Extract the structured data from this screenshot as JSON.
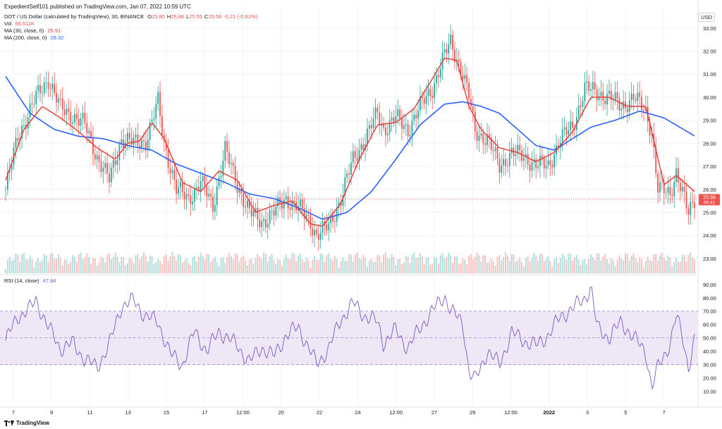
{
  "header": {
    "published": "ExpedientSelf101 published on TradingView.com, Jan 07, 2022 10:59 UTC"
  },
  "legend": {
    "symbol": "DOT / US Dollar (calculated by TradingView), 30, BINANCE",
    "ohlc": [
      {
        "k": "O",
        "v": "25.80"
      },
      {
        "k": "H",
        "v": "25.86"
      },
      {
        "k": "L",
        "v": "25.55"
      },
      {
        "k": "C",
        "v": "25.58"
      },
      {
        "k": "",
        "v": "-0.21 (-0.81%)"
      }
    ],
    "vol_label": "Vol",
    "vol_value": "66.511K",
    "ma30_label": "MA (30, close, 0)",
    "ma30_value": "25.91",
    "ma200_label": "MA (200, close, 0)",
    "ma200_value": "28.32",
    "rsi_label": "RSI (14, close)",
    "rsi_value": "47.84"
  },
  "currency_button": "USD",
  "price_badge": {
    "price": "25.58",
    "countdown": "00:41"
  },
  "footer_brand": "TradingView",
  "colors": {
    "up": "#26a69a",
    "down": "#ef5350",
    "ma30": "#e53935",
    "ma200": "#2962ff",
    "rsi": "#7e57c2",
    "band": "#ede7f6"
  },
  "chart_data": [
    {
      "type": "candlestick",
      "title": "DOT / US Dollar (calculated by TradingView), 30, BINANCE",
      "x_tick_labels": [
        "7",
        "9",
        "11",
        "13",
        "15",
        "17",
        "12:00",
        "20",
        "22",
        "24",
        "12:00",
        "27",
        "29",
        "12:00",
        "2022",
        "3",
        "5",
        "7"
      ],
      "y_tick_labels": [
        "23.00",
        "24.00",
        "25.00",
        "26.00",
        "27.00",
        "28.00",
        "29.00",
        "30.00",
        "31.00",
        "32.00",
        "33.00"
      ],
      "ylim": [
        22.6,
        33.3
      ],
      "last_close": 25.58,
      "price_path": [
        [
          0,
          26.0
        ],
        [
          2,
          28.3
        ],
        [
          5,
          30.0
        ],
        [
          7,
          30.8
        ],
        [
          9,
          29.5
        ],
        [
          11,
          29.2
        ],
        [
          13,
          28.8
        ],
        [
          15,
          27.4
        ],
        [
          17,
          26.4
        ],
        [
          19,
          28.2
        ],
        [
          21,
          28.0
        ],
        [
          23,
          28.1
        ],
        [
          24,
          28.9
        ],
        [
          25,
          29.8
        ],
        [
          26,
          28.0
        ],
        [
          28,
          26.0
        ],
        [
          30,
          25.6
        ],
        [
          32,
          26.3
        ],
        [
          34,
          25.3
        ],
        [
          36,
          27.7
        ],
        [
          38,
          26.2
        ],
        [
          40,
          25.0
        ],
        [
          42,
          24.6
        ],
        [
          44,
          25.0
        ],
        [
          46,
          25.6
        ],
        [
          48,
          25.2
        ],
        [
          50,
          24.6
        ],
        [
          51,
          24.0
        ],
        [
          53,
          24.4
        ],
        [
          55,
          25.6
        ],
        [
          57,
          27.3
        ],
        [
          59,
          28.2
        ],
        [
          61,
          29.3
        ],
        [
          62,
          28.6
        ],
        [
          64,
          29.1
        ],
        [
          66,
          28.6
        ],
        [
          68,
          29.6
        ],
        [
          70,
          30.4
        ],
        [
          72,
          31.8
        ],
        [
          73,
          32.4
        ],
        [
          75,
          31.0
        ],
        [
          76,
          30.0
        ],
        [
          77,
          28.5
        ],
        [
          79,
          28.2
        ],
        [
          81,
          27.0
        ],
        [
          83,
          27.6
        ],
        [
          85,
          27.4
        ],
        [
          87,
          27.1
        ],
        [
          89,
          27.0
        ],
        [
          91,
          28.2
        ],
        [
          93,
          28.7
        ],
        [
          95,
          30.4
        ],
        [
          97,
          30.2
        ],
        [
          99,
          30.0
        ],
        [
          101,
          29.6
        ],
        [
          103,
          30.0
        ],
        [
          105,
          29.4
        ],
        [
          106,
          28.5
        ],
        [
          107,
          26.0
        ],
        [
          109,
          25.8
        ],
        [
          110,
          26.8
        ],
        [
          112,
          24.9
        ],
        [
          113,
          25.58
        ]
      ],
      "ma30_path": [
        [
          0,
          26.4
        ],
        [
          3,
          28.6
        ],
        [
          6,
          29.6
        ],
        [
          9,
          29.1
        ],
        [
          12,
          28.5
        ],
        [
          15,
          27.8
        ],
        [
          18,
          27.3
        ],
        [
          20,
          28.0
        ],
        [
          22,
          28.1
        ],
        [
          24,
          28.9
        ],
        [
          26,
          28.2
        ],
        [
          29,
          26.3
        ],
        [
          32,
          25.9
        ],
        [
          35,
          26.8
        ],
        [
          38,
          26.4
        ],
        [
          41,
          25.0
        ],
        [
          44,
          25.3
        ],
        [
          47,
          25.5
        ],
        [
          50,
          24.5
        ],
        [
          52,
          24.4
        ],
        [
          55,
          25.4
        ],
        [
          58,
          27.3
        ],
        [
          61,
          28.8
        ],
        [
          64,
          28.9
        ],
        [
          67,
          29.5
        ],
        [
          70,
          30.8
        ],
        [
          72,
          31.7
        ],
        [
          74,
          31.6
        ],
        [
          76,
          29.6
        ],
        [
          78,
          28.6
        ],
        [
          81,
          27.8
        ],
        [
          84,
          27.6
        ],
        [
          87,
          27.2
        ],
        [
          90,
          27.6
        ],
        [
          93,
          28.5
        ],
        [
          96,
          30.0
        ],
        [
          99,
          30.0
        ],
        [
          102,
          29.6
        ],
        [
          105,
          29.6
        ],
        [
          106,
          28.5
        ],
        [
          108,
          26.2
        ],
        [
          110,
          26.6
        ],
        [
          113,
          25.91
        ]
      ],
      "ma200_path": [
        [
          0,
          30.9
        ],
        [
          4,
          29.3
        ],
        [
          8,
          28.6
        ],
        [
          12,
          28.3
        ],
        [
          16,
          28.2
        ],
        [
          20,
          27.9
        ],
        [
          24,
          27.7
        ],
        [
          28,
          27.1
        ],
        [
          32,
          26.7
        ],
        [
          36,
          26.3
        ],
        [
          40,
          25.8
        ],
        [
          44,
          25.6
        ],
        [
          48,
          25.2
        ],
        [
          52,
          24.7
        ],
        [
          56,
          25.0
        ],
        [
          60,
          25.9
        ],
        [
          64,
          27.3
        ],
        [
          68,
          28.8
        ],
        [
          72,
          29.7
        ],
        [
          75,
          29.8
        ],
        [
          78,
          29.6
        ],
        [
          81,
          29.3
        ],
        [
          84,
          28.6
        ],
        [
          87,
          27.9
        ],
        [
          90,
          27.7
        ],
        [
          93,
          28.2
        ],
        [
          96,
          28.7
        ],
        [
          100,
          29.0
        ],
        [
          104,
          29.4
        ],
        [
          108,
          29.1
        ],
        [
          113,
          28.32
        ]
      ],
      "ma30_last": 25.91,
      "ma200_last": 28.32,
      "volume_last": "66.511K"
    },
    {
      "type": "line",
      "title": "RSI (14, close)",
      "y_tick_labels": [
        "10.00",
        "20.00",
        "30.00",
        "40.00",
        "50.00",
        "60.00",
        "70.00",
        "80.00",
        "90.00"
      ],
      "ylim": [
        5,
        92
      ],
      "band": [
        30,
        70
      ],
      "midline": 50,
      "last": 47.84,
      "rsi_path": [
        [
          0,
          48
        ],
        [
          2,
          66
        ],
        [
          4,
          72
        ],
        [
          5,
          78
        ],
        [
          7,
          58
        ],
        [
          9,
          42
        ],
        [
          11,
          46
        ],
        [
          13,
          34
        ],
        [
          15,
          28
        ],
        [
          17,
          45
        ],
        [
          19,
          74
        ],
        [
          21,
          78
        ],
        [
          23,
          66
        ],
        [
          25,
          62
        ],
        [
          27,
          38
        ],
        [
          29,
          30
        ],
        [
          31,
          55
        ],
        [
          33,
          40
        ],
        [
          35,
          55
        ],
        [
          37,
          48
        ],
        [
          38,
          44
        ],
        [
          40,
          32
        ],
        [
          42,
          43
        ],
        [
          44,
          36
        ],
        [
          46,
          52
        ],
        [
          48,
          58
        ],
        [
          50,
          40
        ],
        [
          51,
          30
        ],
        [
          53,
          42
        ],
        [
          55,
          64
        ],
        [
          57,
          76
        ],
        [
          59,
          66
        ],
        [
          61,
          62
        ],
        [
          62,
          46
        ],
        [
          64,
          56
        ],
        [
          66,
          42
        ],
        [
          68,
          58
        ],
        [
          70,
          70
        ],
        [
          72,
          82
        ],
        [
          73,
          70
        ],
        [
          75,
          62
        ],
        [
          76,
          24
        ],
        [
          77,
          18
        ],
        [
          79,
          40
        ],
        [
          81,
          30
        ],
        [
          83,
          54
        ],
        [
          85,
          48
        ],
        [
          87,
          44
        ],
        [
          89,
          52
        ],
        [
          91,
          66
        ],
        [
          93,
          72
        ],
        [
          95,
          80
        ],
        [
          96,
          88
        ],
        [
          97,
          58
        ],
        [
          99,
          50
        ],
        [
          101,
          62
        ],
        [
          103,
          50
        ],
        [
          105,
          40
        ],
        [
          106,
          12
        ],
        [
          107,
          28
        ],
        [
          109,
          46
        ],
        [
          110,
          66
        ],
        [
          111,
          52
        ],
        [
          112,
          28
        ],
        [
          113,
          47.84
        ]
      ]
    }
  ]
}
